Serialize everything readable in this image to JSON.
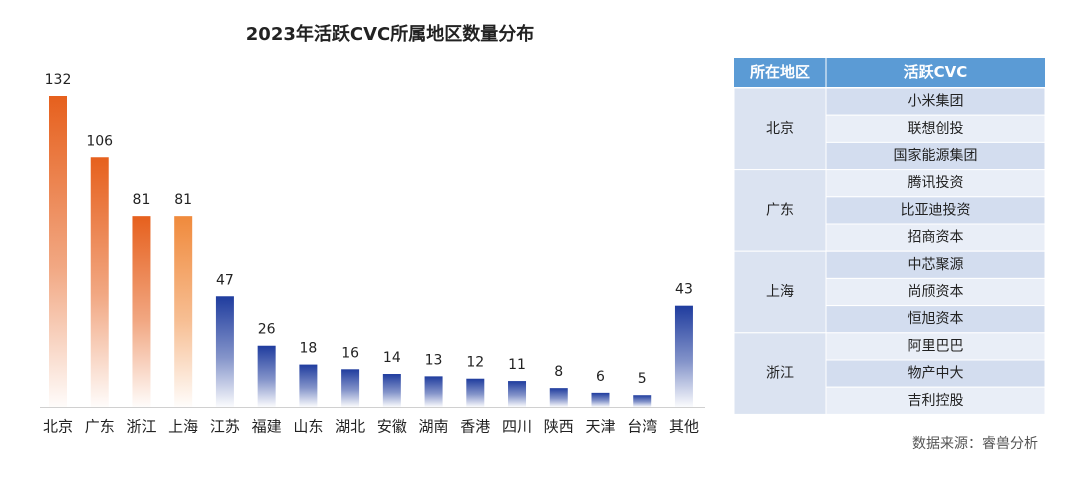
{
  "chart_data": {
    "type": "bar",
    "title": "2023年活跃CVC所属地区数量分布",
    "categories": [
      "北京",
      "广东",
      "浙江",
      "上海",
      "江苏",
      "福建",
      "山东",
      "湖北",
      "安徽",
      "湖南",
      "香港",
      "四川",
      "陕西",
      "天津",
      "台湾",
      "其他"
    ],
    "values": [
      132,
      106,
      81,
      81,
      47,
      26,
      18,
      16,
      14,
      13,
      12,
      11,
      8,
      6,
      5,
      43
    ],
    "colors": [
      "#e6601d",
      "#e6601d",
      "#e6601d",
      "#f08a3c",
      "#1f3c9e",
      "#1f3c9e",
      "#1f3c9e",
      "#1f3c9e",
      "#1f3c9e",
      "#1f3c9e",
      "#1f3c9e",
      "#1f3c9e",
      "#1f3c9e",
      "#1f3c9e",
      "#1f3c9e",
      "#1f3c9e"
    ]
  },
  "table": {
    "header": [
      "所在地区",
      "活跃CVC"
    ],
    "groups": [
      {
        "region": "北京",
        "companies": [
          "小米集团",
          "联想创投",
          "国家能源集团"
        ]
      },
      {
        "region": "广东",
        "companies": [
          "腾讯投资",
          "比亚迪投资",
          "招商资本"
        ]
      },
      {
        "region": "上海",
        "companies": [
          "中芯聚源",
          "尚颀资本",
          "恒旭资本"
        ]
      },
      {
        "region": "浙江",
        "companies": [
          "阿里巴巴",
          "物产中大",
          "吉利控股"
        ]
      }
    ]
  },
  "source": "数据来源：睿兽分析"
}
